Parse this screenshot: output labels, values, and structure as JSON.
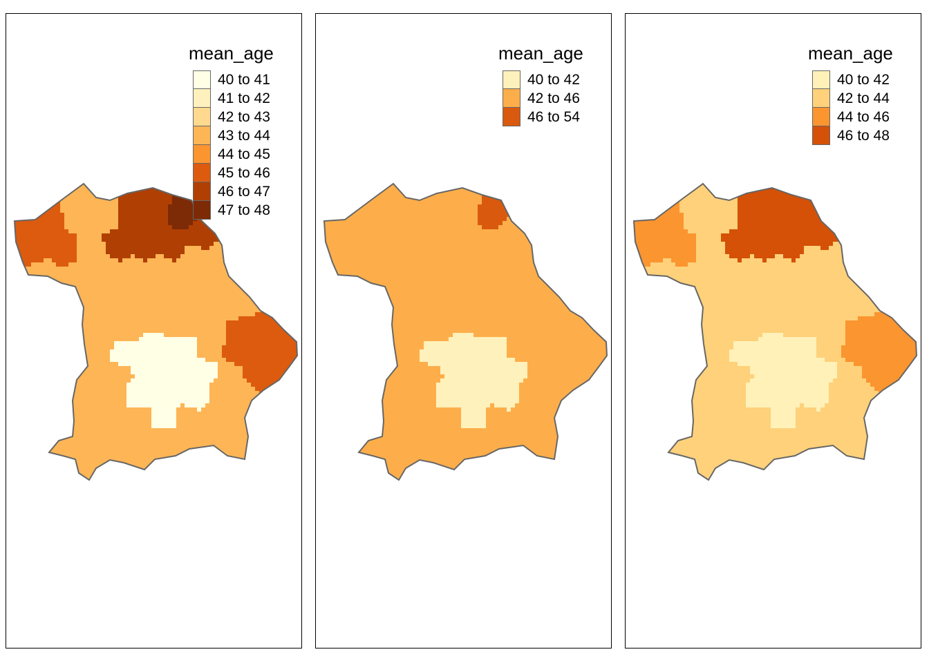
{
  "outline_color": "#666666",
  "panels": [
    {
      "legend": {
        "title": "mean_age",
        "items": [
          {
            "label": "40 to 41",
            "color": "#ffffe5"
          },
          {
            "label": "41 to 42",
            "color": "#fff1be"
          },
          {
            "label": "42 to 43",
            "color": "#fed98e"
          },
          {
            "label": "43 to 44",
            "color": "#fdb556"
          },
          {
            "label": "44 to 45",
            "color": "#fb9530"
          },
          {
            "label": "45 to 46",
            "color": "#dc5b0e"
          },
          {
            "label": "46 to 47",
            "color": "#b03f04"
          },
          {
            "label": "47 to 48",
            "color": "#7d2a06"
          }
        ]
      }
    },
    {
      "legend": {
        "title": "mean_age",
        "items": [
          {
            "label": "40 to 42",
            "color": "#fff1bb"
          },
          {
            "label": "42 to 46",
            "color": "#fdae4a"
          },
          {
            "label": "46 to 54",
            "color": "#d95a0e"
          }
        ]
      }
    },
    {
      "legend": {
        "title": "mean_age",
        "items": [
          {
            "label": "40 to 42",
            "color": "#fff1b8"
          },
          {
            "label": "42 to 44",
            "color": "#fed17a"
          },
          {
            "label": "44 to 46",
            "color": "#fb9530"
          },
          {
            "label": "46 to 48",
            "color": "#d45107"
          }
        ]
      }
    }
  ]
}
